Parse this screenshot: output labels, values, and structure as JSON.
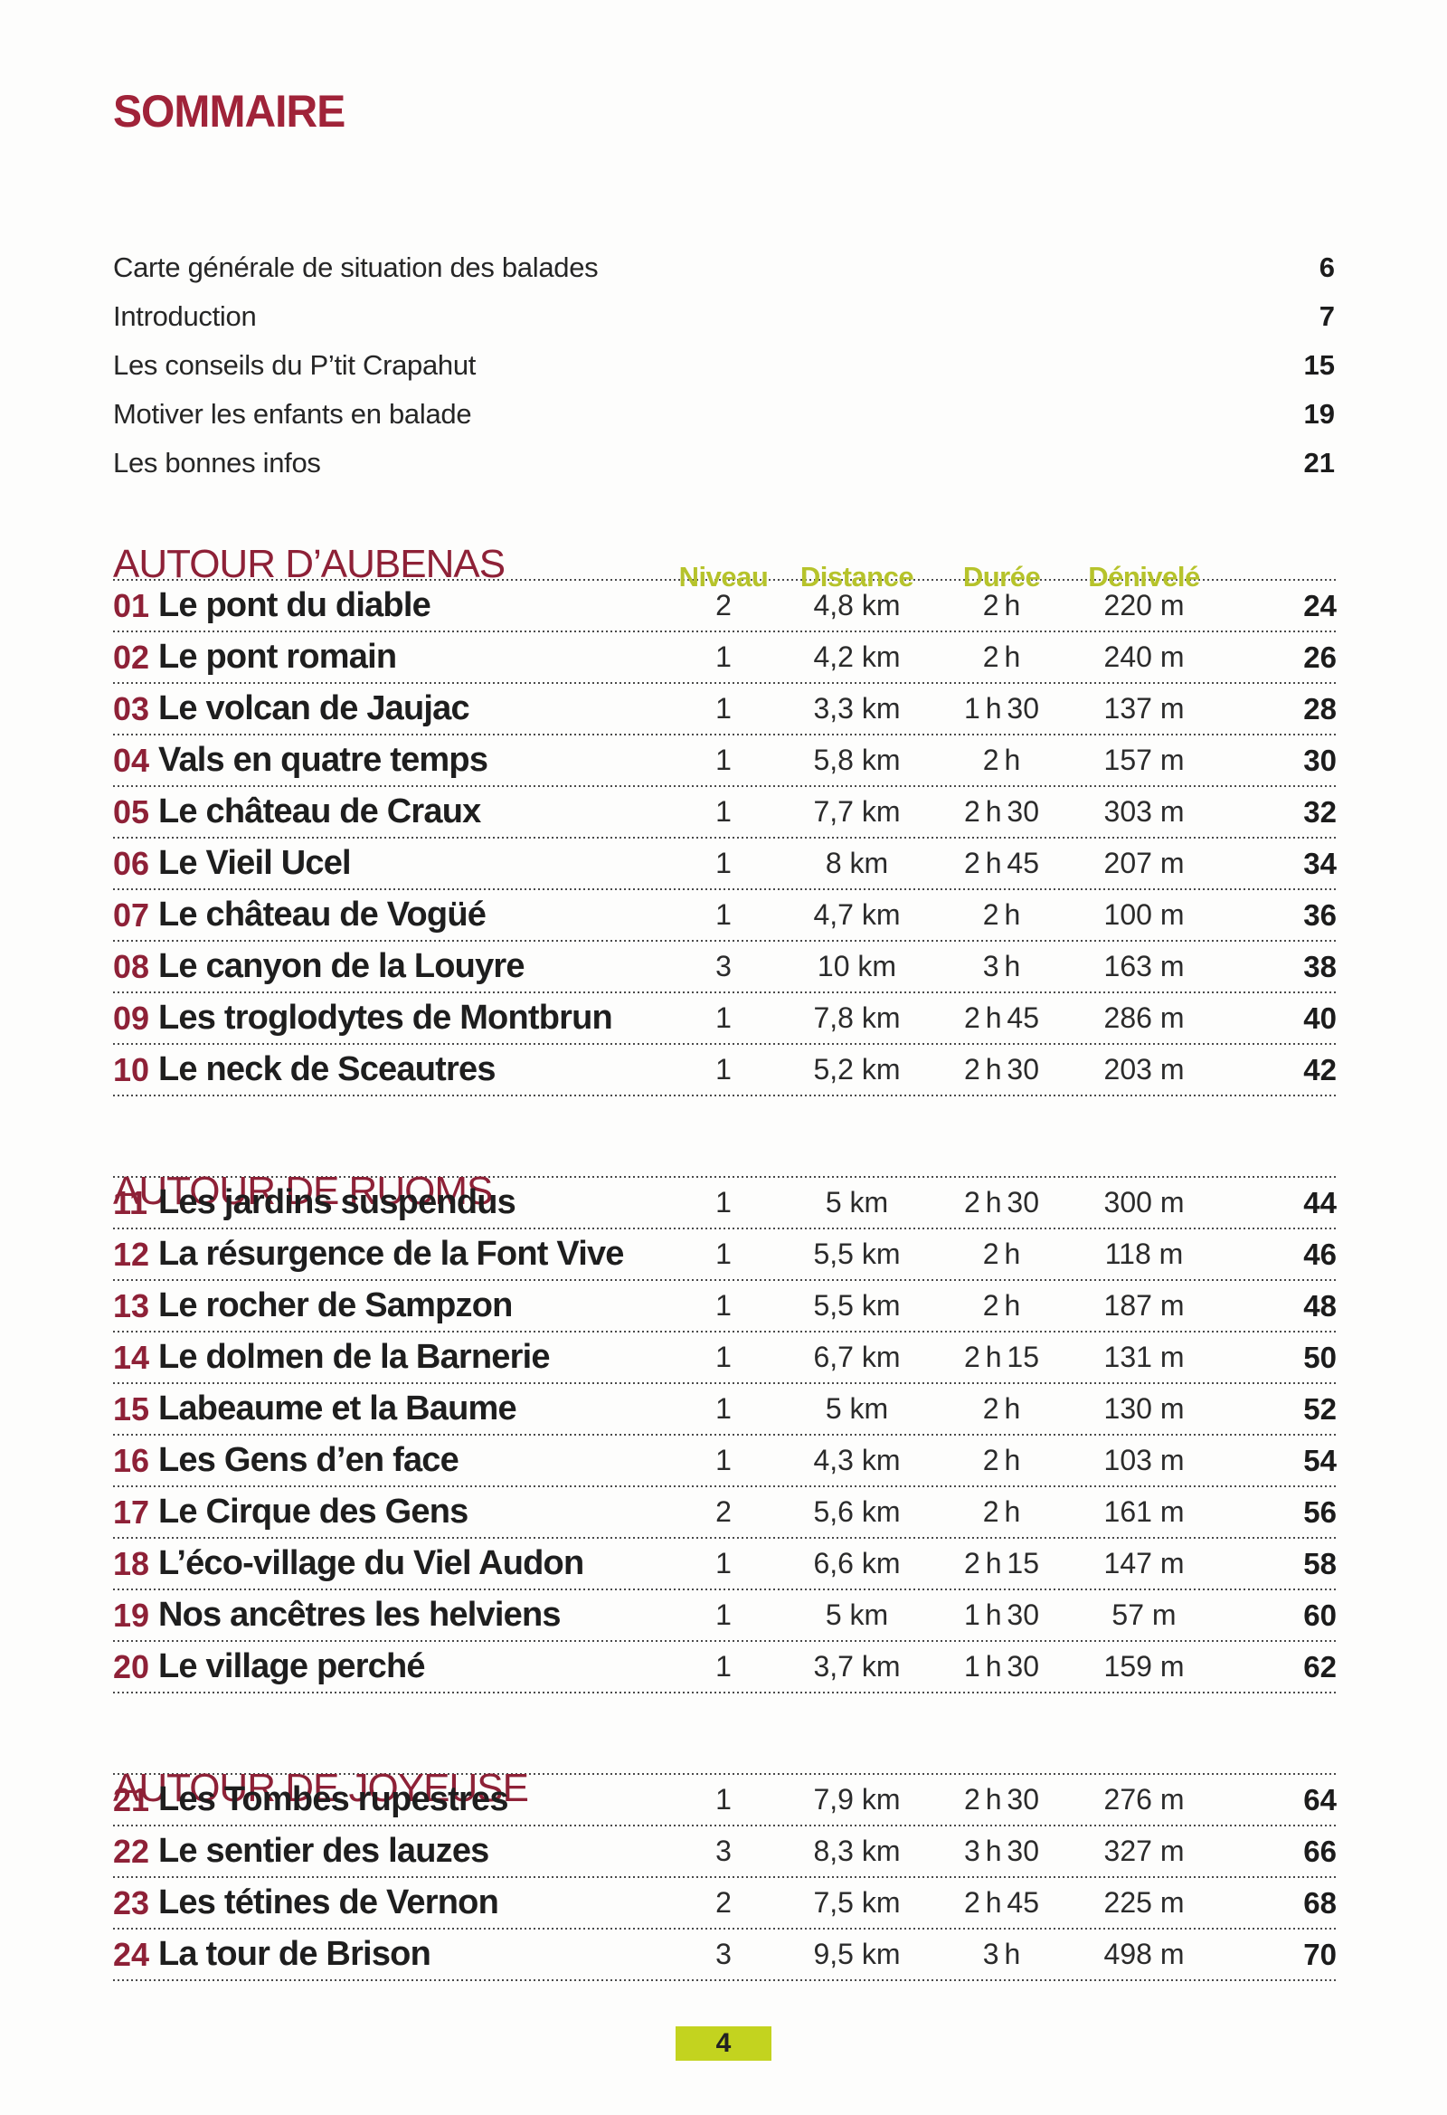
{
  "page": {
    "title": "SOMMAIRE",
    "footer_page": "4"
  },
  "colors": {
    "title_maroon": "#a02339",
    "section_maroon": "#8e2137",
    "header_green": "#b6c32b",
    "badge_green": "#c3d31f",
    "text_dark": "#1e1e1e"
  },
  "intro": {
    "items": [
      {
        "label": "Carte générale de situation des balades",
        "page": "6"
      },
      {
        "label": "Introduction",
        "page": "7"
      },
      {
        "label": "Les conseils du P’tit Crapahut",
        "page": "15"
      },
      {
        "label": "Motiver les enfants en balade",
        "page": "19"
      },
      {
        "label": "Les bonnes infos",
        "page": "21"
      }
    ]
  },
  "table": {
    "column_headers": {
      "niveau": "Niveau",
      "distance": "Distance",
      "duree": "Durée",
      "denivele": "Dénivelé"
    },
    "sections": [
      {
        "title": "AUTOUR D’AUBENAS",
        "rows": [
          {
            "num": "01",
            "title": "Le pont du diable",
            "niveau": "2",
            "distance": "4,8 km",
            "duree": "2 h",
            "denivele": "220 m",
            "page": "24"
          },
          {
            "num": "02",
            "title": "Le pont romain",
            "niveau": "1",
            "distance": "4,2 km",
            "duree": "2 h",
            "denivele": "240 m",
            "page": "26"
          },
          {
            "num": "03",
            "title": "Le volcan de Jaujac",
            "niveau": "1",
            "distance": "3,3 km",
            "duree": "1 h 30",
            "denivele": "137 m",
            "page": "28"
          },
          {
            "num": "04",
            "title": "Vals en quatre temps",
            "niveau": "1",
            "distance": "5,8 km",
            "duree": "2 h",
            "denivele": "157 m",
            "page": "30"
          },
          {
            "num": "05",
            "title": "Le château de Craux",
            "niveau": "1",
            "distance": "7,7 km",
            "duree": "2 h 30",
            "denivele": "303 m",
            "page": "32"
          },
          {
            "num": "06",
            "title": "Le Vieil Ucel",
            "niveau": "1",
            "distance": "8 km",
            "duree": "2 h 45",
            "denivele": "207 m",
            "page": "34"
          },
          {
            "num": "07",
            "title": "Le château de Vogüé",
            "niveau": "1",
            "distance": "4,7 km",
            "duree": "2 h",
            "denivele": "100 m",
            "page": "36"
          },
          {
            "num": "08",
            "title": "Le canyon de la Louyre",
            "niveau": "3",
            "distance": "10 km",
            "duree": "3 h",
            "denivele": "163 m",
            "page": "38"
          },
          {
            "num": "09",
            "title": "Les troglodytes de Montbrun",
            "niveau": "1",
            "distance": "7,8 km",
            "duree": "2 h 45",
            "denivele": "286 m",
            "page": "40"
          },
          {
            "num": "10",
            "title": "Le neck de Sceautres",
            "niveau": "1",
            "distance": "5,2 km",
            "duree": "2 h 30",
            "denivele": "203 m",
            "page": "42"
          }
        ]
      },
      {
        "title": "AUTOUR DE RUOMS",
        "rows": [
          {
            "num": "11",
            "title": "Les jardins suspendus",
            "niveau": "1",
            "distance": "5 km",
            "duree": "2 h 30",
            "denivele": "300 m",
            "page": "44"
          },
          {
            "num": "12",
            "title": "La résurgence de la Font Vive",
            "niveau": "1",
            "distance": "5,5 km",
            "duree": "2 h",
            "denivele": "118 m",
            "page": "46"
          },
          {
            "num": "13",
            "title": "Le rocher de Sampzon",
            "niveau": "1",
            "distance": "5,5 km",
            "duree": "2 h",
            "denivele": "187 m",
            "page": "48"
          },
          {
            "num": "14",
            "title": "Le dolmen de la Barnerie",
            "niveau": "1",
            "distance": "6,7 km",
            "duree": "2 h 15",
            "denivele": "131 m",
            "page": "50"
          },
          {
            "num": "15",
            "title": "Labeaume et la Baume",
            "niveau": "1",
            "distance": "5 km",
            "duree": "2 h",
            "denivele": "130 m",
            "page": "52"
          },
          {
            "num": "16",
            "title": "Les Gens d’en face",
            "niveau": "1",
            "distance": "4,3 km",
            "duree": "2 h",
            "denivele": "103 m",
            "page": "54"
          },
          {
            "num": "17",
            "title": "Le Cirque des Gens",
            "niveau": "2",
            "distance": "5,6 km",
            "duree": "2 h",
            "denivele": "161 m",
            "page": "56"
          },
          {
            "num": "18",
            "title": "L’éco-village du Viel Audon",
            "niveau": "1",
            "distance": "6,6 km",
            "duree": "2 h 15",
            "denivele": "147 m",
            "page": "58"
          },
          {
            "num": "19",
            "title": "Nos ancêtres les helviens",
            "niveau": "1",
            "distance": "5 km",
            "duree": "1 h 30",
            "denivele": "57 m",
            "page": "60"
          },
          {
            "num": "20",
            "title": "Le village perché",
            "niveau": "1",
            "distance": "3,7 km",
            "duree": "1 h 30",
            "denivele": "159 m",
            "page": "62"
          }
        ]
      },
      {
        "title": "AUTOUR DE JOYEUSE",
        "rows": [
          {
            "num": "21",
            "title": "Les Tombes rupestres",
            "niveau": "1",
            "distance": "7,9 km",
            "duree": "2 h 30",
            "denivele": "276 m",
            "page": "64"
          },
          {
            "num": "22",
            "title": "Le sentier des lauzes",
            "niveau": "3",
            "distance": "8,3 km",
            "duree": "3 h 30",
            "denivele": "327 m",
            "page": "66"
          },
          {
            "num": "23",
            "title": "Les tétines de Vernon",
            "niveau": "2",
            "distance": "7,5 km",
            "duree": "2 h 45",
            "denivele": "225 m",
            "page": "68"
          },
          {
            "num": "24",
            "title": "La tour de Brison",
            "niveau": "3",
            "distance": "9,5 km",
            "duree": "3 h",
            "denivele": "498 m",
            "page": "70"
          }
        ]
      }
    ]
  }
}
